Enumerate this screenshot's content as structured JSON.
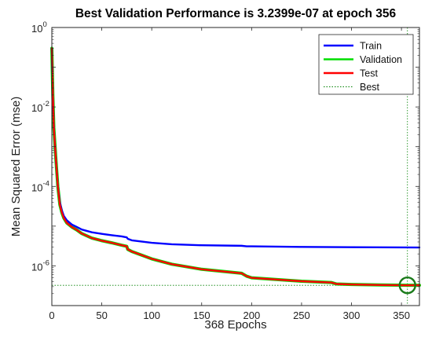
{
  "chart_data": {
    "type": "line",
    "title": "Best Validation Performance is 3.2399e-07 at epoch 356",
    "xlabel": "368 Epochs",
    "ylabel": "Mean Squared Error  (mse)",
    "y_scale": "log",
    "xlim": [
      0,
      368
    ],
    "ylim": [
      1e-07,
      1
    ],
    "x_ticks": [
      "0",
      "50",
      "100",
      "150",
      "200",
      "250",
      "300",
      "350"
    ],
    "y_ticks": [
      {
        "base": "10",
        "exp": "0"
      },
      {
        "base": "10",
        "exp": "-2"
      },
      {
        "base": "10",
        "exp": "-4"
      },
      {
        "base": "10",
        "exp": "-6"
      }
    ],
    "grid": false,
    "legend_position": "top-right",
    "best": {
      "epoch": 356,
      "value": 3.2399e-07
    },
    "series": [
      {
        "name": "Train",
        "color": "#0000ff",
        "x": [
          0,
          1,
          2,
          4,
          6,
          8,
          10,
          12,
          15,
          20,
          25,
          30,
          40,
          50,
          60,
          70,
          75,
          76,
          80,
          100,
          120,
          150,
          190,
          195,
          200,
          250,
          300,
          368
        ],
        "y": [
          0.3,
          0.02,
          0.003,
          0.0005,
          0.0001,
          4e-05,
          2.5e-05,
          1.8e-05,
          1.4e-05,
          1.1e-05,
          9.5e-06,
          8.2e-06,
          7e-06,
          6.4e-06,
          5.9e-06,
          5.5e-06,
          5.2e-06,
          4.8e-06,
          4.4e-06,
          3.8e-06,
          3.5e-06,
          3.3e-06,
          3.2e-06,
          3.1e-06,
          3.1e-06,
          3e-06,
          2.95e-06,
          2.9e-06
        ]
      },
      {
        "name": "Validation",
        "color": "#00dd00",
        "x": [
          0,
          1,
          2,
          4,
          6,
          8,
          10,
          12,
          15,
          20,
          25,
          30,
          40,
          50,
          60,
          70,
          75,
          76,
          80,
          100,
          120,
          150,
          190,
          195,
          200,
          250,
          280,
          285,
          300,
          330,
          356,
          368
        ],
        "y": [
          0.3,
          0.02,
          0.003,
          0.0005,
          0.0001,
          3.5e-05,
          2.2e-05,
          1.6e-05,
          1.2e-05,
          9.5e-06,
          8e-06,
          6.5e-06,
          5e-06,
          4.3e-06,
          3.8e-06,
          3.3e-06,
          3.1e-06,
          2.6e-06,
          2.3e-06,
          1.5e-06,
          1.1e-06,
          8.2e-07,
          6.5e-07,
          5.5e-07,
          5e-07,
          4.1e-07,
          3.8e-07,
          3.5e-07,
          3.4e-07,
          3.3e-07,
          3.24e-07,
          3.25e-07
        ]
      },
      {
        "name": "Test",
        "color": "#ff0000",
        "x": [
          0,
          1,
          2,
          4,
          6,
          8,
          10,
          12,
          15,
          20,
          25,
          30,
          40,
          50,
          60,
          70,
          75,
          76,
          80,
          100,
          120,
          150,
          190,
          195,
          200,
          250,
          280,
          285,
          300,
          330,
          356,
          368
        ],
        "y": [
          0.3,
          0.02,
          0.003,
          0.0005,
          0.0001,
          3.5e-05,
          2.2e-05,
          1.6e-05,
          1.2e-05,
          9.5e-06,
          8e-06,
          6.5e-06,
          5e-06,
          4.3e-06,
          3.8e-06,
          3.3e-06,
          3.1e-06,
          2.6e-06,
          2.3e-06,
          1.5e-06,
          1.1e-06,
          8.2e-07,
          6.5e-07,
          5.5e-07,
          5e-07,
          4.1e-07,
          3.8e-07,
          3.5e-07,
          3.4e-07,
          3.3e-07,
          3.24e-07,
          3.25e-07
        ]
      },
      {
        "name": "Best",
        "color": "#008000",
        "style": "dotted"
      }
    ]
  }
}
